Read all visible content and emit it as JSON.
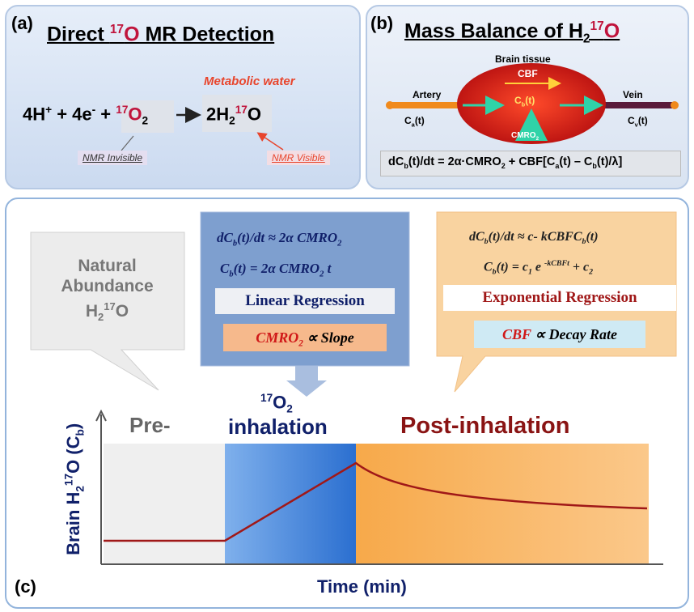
{
  "panel_a": {
    "label": "(a)",
    "title": [
      "Direct ",
      "17",
      "O",
      " MR Detection"
    ],
    "annotation": "Metabolic water",
    "equation": [
      "4H",
      "+",
      " + 4e",
      "-",
      " + ",
      "17",
      "O",
      "2",
      "2H",
      "2",
      "17",
      "O"
    ],
    "invisible_label": "NMR Invisible",
    "visible_label": "NMR Visible"
  },
  "panel_b": {
    "label": "(b)",
    "title": [
      "Mass Balance of H",
      "2",
      "17",
      "O"
    ],
    "tissue_label": "Brain tissue",
    "artery": "Artery",
    "artery_conc": [
      "C",
      "a",
      "(t)"
    ],
    "flow": "CBF",
    "tissue_conc": [
      "C",
      "b",
      "(t)"
    ],
    "consumption": [
      "CMRO",
      "2"
    ],
    "vein": "Vein",
    "vein_conc": [
      "C",
      "v",
      "(t)"
    ],
    "equation": [
      "dC",
      "b",
      "(t)/dt = 2α·CMRO",
      "2",
      " + CBF[C",
      "a",
      "(t) – C",
      "b",
      "(t)/λ]"
    ]
  },
  "panel_c": {
    "label": "(c)",
    "natural": [
      "Natural",
      "Abundance",
      "H",
      "2",
      "17",
      "O"
    ],
    "linear": {
      "formula_1": [
        "dC",
        "b",
        "(t)/dt ≈ 2α CMRO",
        "2"
      ],
      "formula_2": [
        "C",
        "b",
        "(t) = 2α CMRO",
        "2",
        " t"
      ],
      "method": "Linear Regression",
      "relation": [
        "CMRO",
        "2",
        " ∝ Slope"
      ]
    },
    "exponential": {
      "formula_1": [
        "dC",
        "b",
        "(t)/dt ≈ c- kCBFC",
        "b",
        "(t)"
      ],
      "formula_2": [
        "C",
        "b",
        "(t) = c",
        "1",
        " e ",
        "-kCBFt",
        " + c",
        "2"
      ],
      "method": "Exponential Regression",
      "relation": [
        "CBF",
        " ∝ Decay Rate"
      ]
    },
    "phase_pre": "Pre-",
    "phase_inhalation": [
      "17",
      "O",
      "2",
      "inhalation"
    ],
    "phase_post": "Post-inhalation",
    "y_label": [
      "Brain H",
      "2",
      "17",
      "O (C",
      "b",
      ")"
    ],
    "x_label": "Time (min)"
  }
}
